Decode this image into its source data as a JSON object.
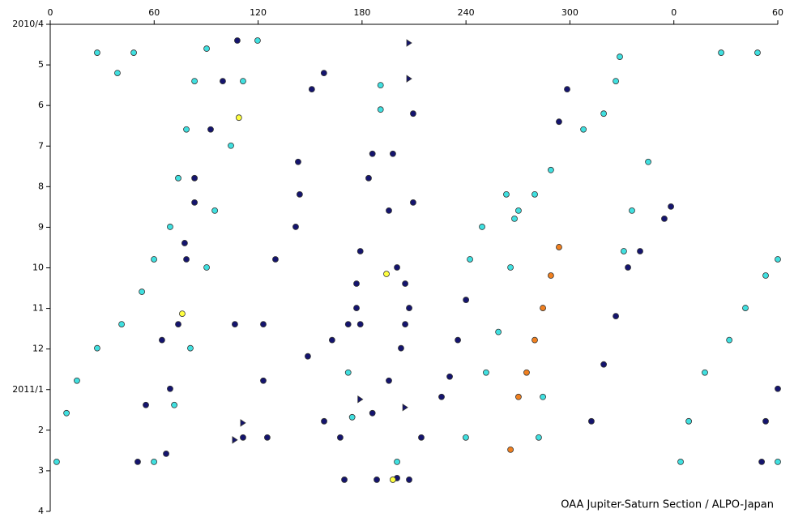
{
  "chart_data": {
    "type": "scatter",
    "annotation": "OAA Jupiter-Saturn Section / ALPO-Japan",
    "xlim": [
      0,
      420
    ],
    "xticks": [
      0,
      60,
      120,
      180,
      240,
      300,
      {
        "value": 360,
        "label": "0"
      },
      {
        "value": 420,
        "label": "60"
      }
    ],
    "ylim": [
      12,
      0
    ],
    "yticks": [
      {
        "value": 0,
        "label": "2010/4"
      },
      {
        "value": 1,
        "label": "5"
      },
      {
        "value": 2,
        "label": "6"
      },
      {
        "value": 3,
        "label": "7"
      },
      {
        "value": 4,
        "label": "8"
      },
      {
        "value": 5,
        "label": "9"
      },
      {
        "value": 6,
        "label": "10"
      },
      {
        "value": 7,
        "label": "11"
      },
      {
        "value": 8,
        "label": "12"
      },
      {
        "value": 9,
        "label": "2011/1"
      },
      {
        "value": 10,
        "label": "2"
      },
      {
        "value": 11,
        "label": "3"
      },
      {
        "value": 12,
        "label": "4"
      }
    ],
    "series": [
      {
        "color": "#40e0e0",
        "marker": "circle",
        "x": [
          9.4,
          15.4,
          27.1,
          41.2,
          52.9,
          59.9,
          69.2,
          73.9,
          78.6,
          83.3,
          90.3,
          59.9,
          71.6,
          80.9,
          90.3,
          95.0,
          104.3,
          111.3,
          119.7,
          251.6,
          258.7,
          265.7,
          268.0,
          263.3,
          270.3,
          279.7,
          289.0,
          242.3,
          249.3,
          239.9,
          282.0,
          284.4,
          345.2,
          335.8,
          331.1,
          307.8,
          319.5,
          326.5,
          328.8,
          368.6,
          377.9,
          392.0,
          401.3,
          413.0,
          420.0,
          27.1,
          48.2,
          387.3,
          408.3,
          38.8,
          3.7,
          363.9,
          420.0,
          190.7,
          190.7,
          172.0,
          174.3,
          200.2
        ],
        "values": [
          9.58,
          8.78,
          7.98,
          7.39,
          6.59,
          5.79,
          4.99,
          3.79,
          2.59,
          1.4,
          0.6,
          10.78,
          9.38,
          7.98,
          5.99,
          4.59,
          2.99,
          1.4,
          0.4,
          8.58,
          7.58,
          5.99,
          4.79,
          4.19,
          4.59,
          4.19,
          3.59,
          5.79,
          4.99,
          10.18,
          10.18,
          9.18,
          3.39,
          4.59,
          5.59,
          2.59,
          2.2,
          1.4,
          0.8,
          9.78,
          8.58,
          7.78,
          6.99,
          6.19,
          5.79,
          0.7,
          0.7,
          0.7,
          0.7,
          1.2,
          10.78,
          10.78,
          10.78,
          1.5,
          2.1,
          8.58,
          9.68,
          10.78
        ]
      },
      {
        "color": "#14146e",
        "marker": "circle",
        "x": [
          50.5,
          55.2,
          64.5,
          77.6,
          83.3,
          92.6,
          99.6,
          108.0,
          66.9,
          69.2,
          73.9,
          78.6,
          83.3,
          130.0,
          123.0,
          123.0,
          125.3,
          143.1,
          144.0,
          141.7,
          151.0,
          158.0,
          179.0,
          176.8,
          176.8,
          179.0,
          183.8,
          186.0,
          197.8,
          195.5,
          200.2,
          204.9,
          202.5,
          195.5,
          209.5,
          209.5,
          204.9,
          207.2,
          214.2,
          225.9,
          230.6,
          235.3,
          240.0,
          312.4,
          319.5,
          326.5,
          333.5,
          340.5,
          354.5,
          358.3,
          298.4,
          293.7,
          420.0,
          413.0,
          410.7,
          200.2,
          169.8,
          188.5,
          207.2,
          158.1,
          167.4,
          186.0,
          148.7,
          162.7,
          172.0,
          106.6,
          111.3
        ],
        "values": [
          10.78,
          9.38,
          7.78,
          5.39,
          3.79,
          2.59,
          1.4,
          0.4,
          10.58,
          8.98,
          7.39,
          5.79,
          4.39,
          5.79,
          7.39,
          8.78,
          10.18,
          3.39,
          4.19,
          4.99,
          1.6,
          1.2,
          5.59,
          6.39,
          6.99,
          7.39,
          3.79,
          3.19,
          3.19,
          4.59,
          5.99,
          7.39,
          7.98,
          8.78,
          2.2,
          4.39,
          6.39,
          6.99,
          10.18,
          9.18,
          8.68,
          7.78,
          6.79,
          9.78,
          8.38,
          7.19,
          5.99,
          5.59,
          4.79,
          4.49,
          1.6,
          2.4,
          8.98,
          9.78,
          10.78,
          11.18,
          11.22,
          11.22,
          11.22,
          9.78,
          10.18,
          9.58,
          8.18,
          7.78,
          7.39,
          7.39,
          10.18
        ]
      },
      {
        "color": "#f08020",
        "marker": "circle",
        "x": [
          265.7,
          270.3,
          275.0,
          279.7,
          284.4,
          289.0,
          293.7
        ],
        "values": [
          10.48,
          9.18,
          8.58,
          7.78,
          6.99,
          6.19,
          5.49
        ]
      },
      {
        "color": "#ffff40",
        "marker": "circle",
        "x": [
          108.9,
          76.2,
          194.1,
          197.8
        ],
        "values": [
          2.3,
          7.13,
          6.15,
          11.22
        ]
      },
      {
        "color": "#14146e",
        "marker": "triangle",
        "x": [
          207.2,
          207.2,
          111.3,
          106.6,
          179.0,
          204.9
        ],
        "values": [
          0.46,
          1.34,
          9.82,
          10.24,
          9.24,
          9.44
        ]
      }
    ]
  }
}
